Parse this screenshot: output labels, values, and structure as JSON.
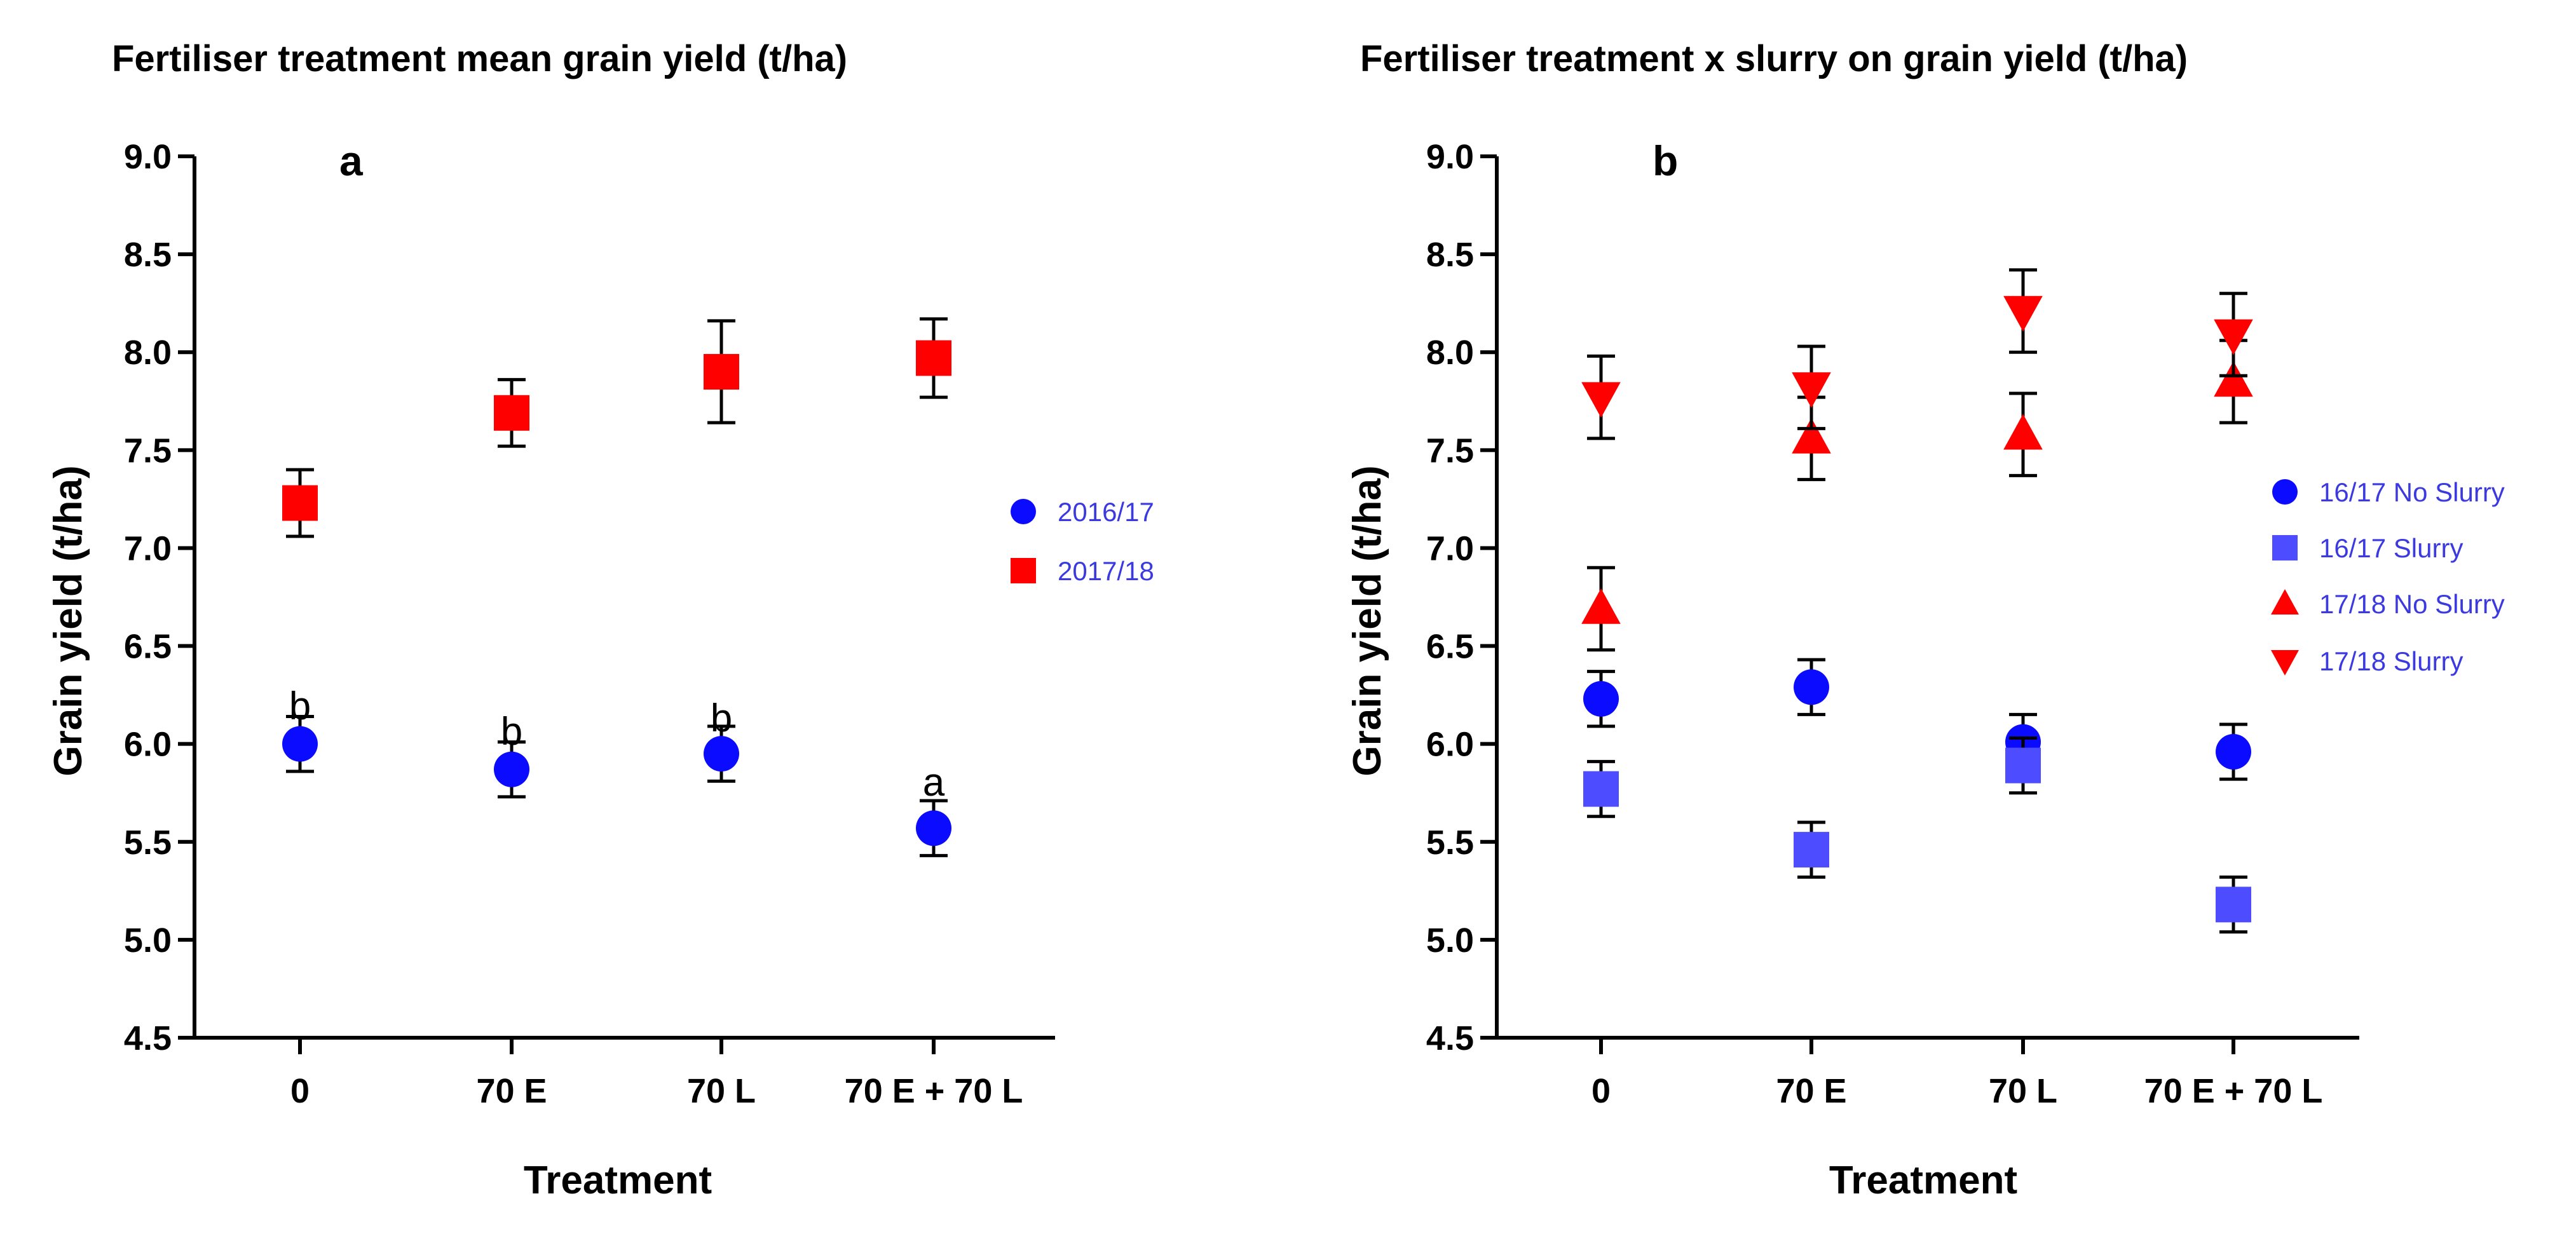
{
  "chart_data": [
    {
      "type": "scatter",
      "panel_letter": "a",
      "title": "Fertiliser treatment mean grain yield (t/ha)",
      "xlabel": "Treatment",
      "ylabel": "Grain yield (t/ha)",
      "categories": [
        "0",
        "70 E",
        "70 L",
        "70 E + 70 L"
      ],
      "ylim": [
        4.5,
        9.0
      ],
      "yticks": [
        "4.5",
        "5.0",
        "5.5",
        "6.0",
        "6.5",
        "7.0",
        "7.5",
        "8.0",
        "8.5",
        "9.0"
      ],
      "grid": false,
      "legend_position": "right",
      "series": [
        {
          "name": "2016/17",
          "marker": "circle",
          "color": "#0b0bff",
          "values": [
            6.0,
            5.87,
            5.95,
            5.57
          ],
          "errors": [
            0.14,
            0.14,
            0.14,
            0.14
          ]
        },
        {
          "name": "2017/18",
          "marker": "square",
          "color": "#ff0000",
          "values": [
            7.23,
            7.69,
            7.9,
            7.97
          ],
          "errors": [
            0.17,
            0.17,
            0.26,
            0.2
          ]
        }
      ],
      "annotations": [
        "b",
        "b",
        "b",
        "a"
      ]
    },
    {
      "type": "scatter",
      "panel_letter": "b",
      "title": "Fertiliser treatment x slurry on grain yield (t/ha)",
      "xlabel": "Treatment",
      "ylabel": "Grain yield (t/ha)",
      "categories": [
        "0",
        "70 E",
        "70 L",
        "70 E + 70 L"
      ],
      "ylim": [
        4.5,
        9.0
      ],
      "yticks": [
        "4.5",
        "5.0",
        "5.5",
        "6.0",
        "6.5",
        "7.0",
        "7.5",
        "8.0",
        "8.5",
        "9.0"
      ],
      "grid": false,
      "legend_position": "right",
      "series": [
        {
          "name": "16/17 No Slurry",
          "marker": "circle",
          "color": "#0b0bff",
          "values": [
            6.23,
            6.29,
            6.01,
            5.96
          ],
          "errors": [
            0.14,
            0.14,
            0.14,
            0.14
          ]
        },
        {
          "name": "16/17 Slurry",
          "marker": "square",
          "color": "#4d4dff",
          "values": [
            5.77,
            5.46,
            5.89,
            5.18
          ],
          "errors": [
            0.14,
            0.14,
            0.14,
            0.14
          ]
        },
        {
          "name": "17/18 No Slurry",
          "marker": "triangle-up",
          "color": "#ff0000",
          "values": [
            6.69,
            7.56,
            7.58,
            7.85
          ],
          "errors": [
            0.21,
            0.21,
            0.21,
            0.21
          ]
        },
        {
          "name": "17/18 Slurry",
          "marker": "triangle-down",
          "color": "#ff0000",
          "values": [
            7.77,
            7.82,
            8.21,
            8.09
          ],
          "errors": [
            0.21,
            0.21,
            0.21,
            0.21
          ]
        }
      ],
      "annotations": []
    }
  ]
}
